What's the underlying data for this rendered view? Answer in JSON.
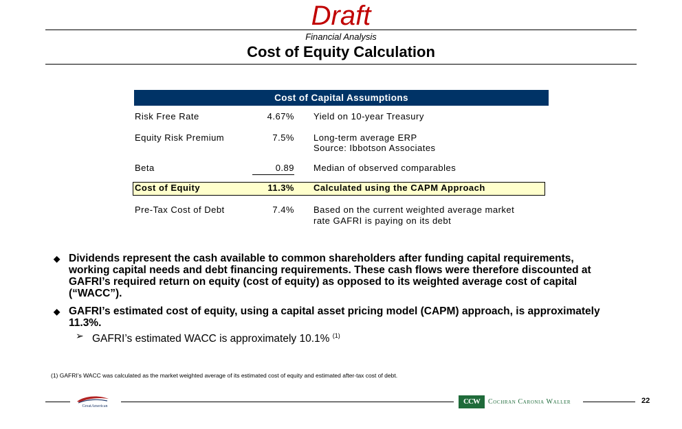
{
  "header": {
    "watermark": "Draft",
    "subtitle": "Financial Analysis",
    "title": "Cost of Equity Calculation"
  },
  "assumptions": {
    "heading": "Cost of Capital Assumptions",
    "rows": [
      {
        "label": "Risk Free Rate",
        "value": "4.67%",
        "desc": [
          "Yield on 10-year Treasury"
        ]
      },
      {
        "label": "Equity Risk Premium",
        "value": "7.5%",
        "desc": [
          "Long-term average ERP",
          "Source:  Ibbotson Associates"
        ]
      },
      {
        "label": "Beta",
        "value": "0.89",
        "desc": [
          "Median of observed comparables"
        ]
      },
      {
        "label": "Cost of Equity",
        "value": "11.3%",
        "desc": [
          "Calculated using the CAPM Approach"
        ]
      },
      {
        "label": "Pre-Tax Cost of Debt",
        "value": "7.4%",
        "desc": [
          "Based on the current weighted average market",
          "rate GAFRI is paying on its debt"
        ]
      }
    ],
    "highlight_color": "#ffffcc",
    "header_color": "#003366"
  },
  "bullets": [
    "Dividends represent the cash available to common shareholders after funding capital requirements, working capital needs and debt financing requirements.  These cash flows were therefore discounted at GAFRI’s required return on equity (cost of equity) as opposed to its weighted average cost of capital (“WACC”).",
    "GAFRI’s estimated cost of equity, using a capital asset pricing model (CAPM) approach, is approximately 11.3%."
  ],
  "sub_bullet": {
    "text": "GAFRI’s estimated WACC is approximately 10.1% ",
    "footnote_ref": "(1)"
  },
  "footnote": "(1) GAFRI’s WACC was calculated as the market weighted average of its estimated cost of equity and estimated after-tax cost of debt.",
  "footer": {
    "left_logo": "GreatAmerican",
    "right_logo_mark": "CCW",
    "right_logo_text": "Cochran Caronia Waller",
    "page_number": "22"
  },
  "colors": {
    "draft": "#c00000",
    "ccw_green": "#1f6b3a"
  }
}
